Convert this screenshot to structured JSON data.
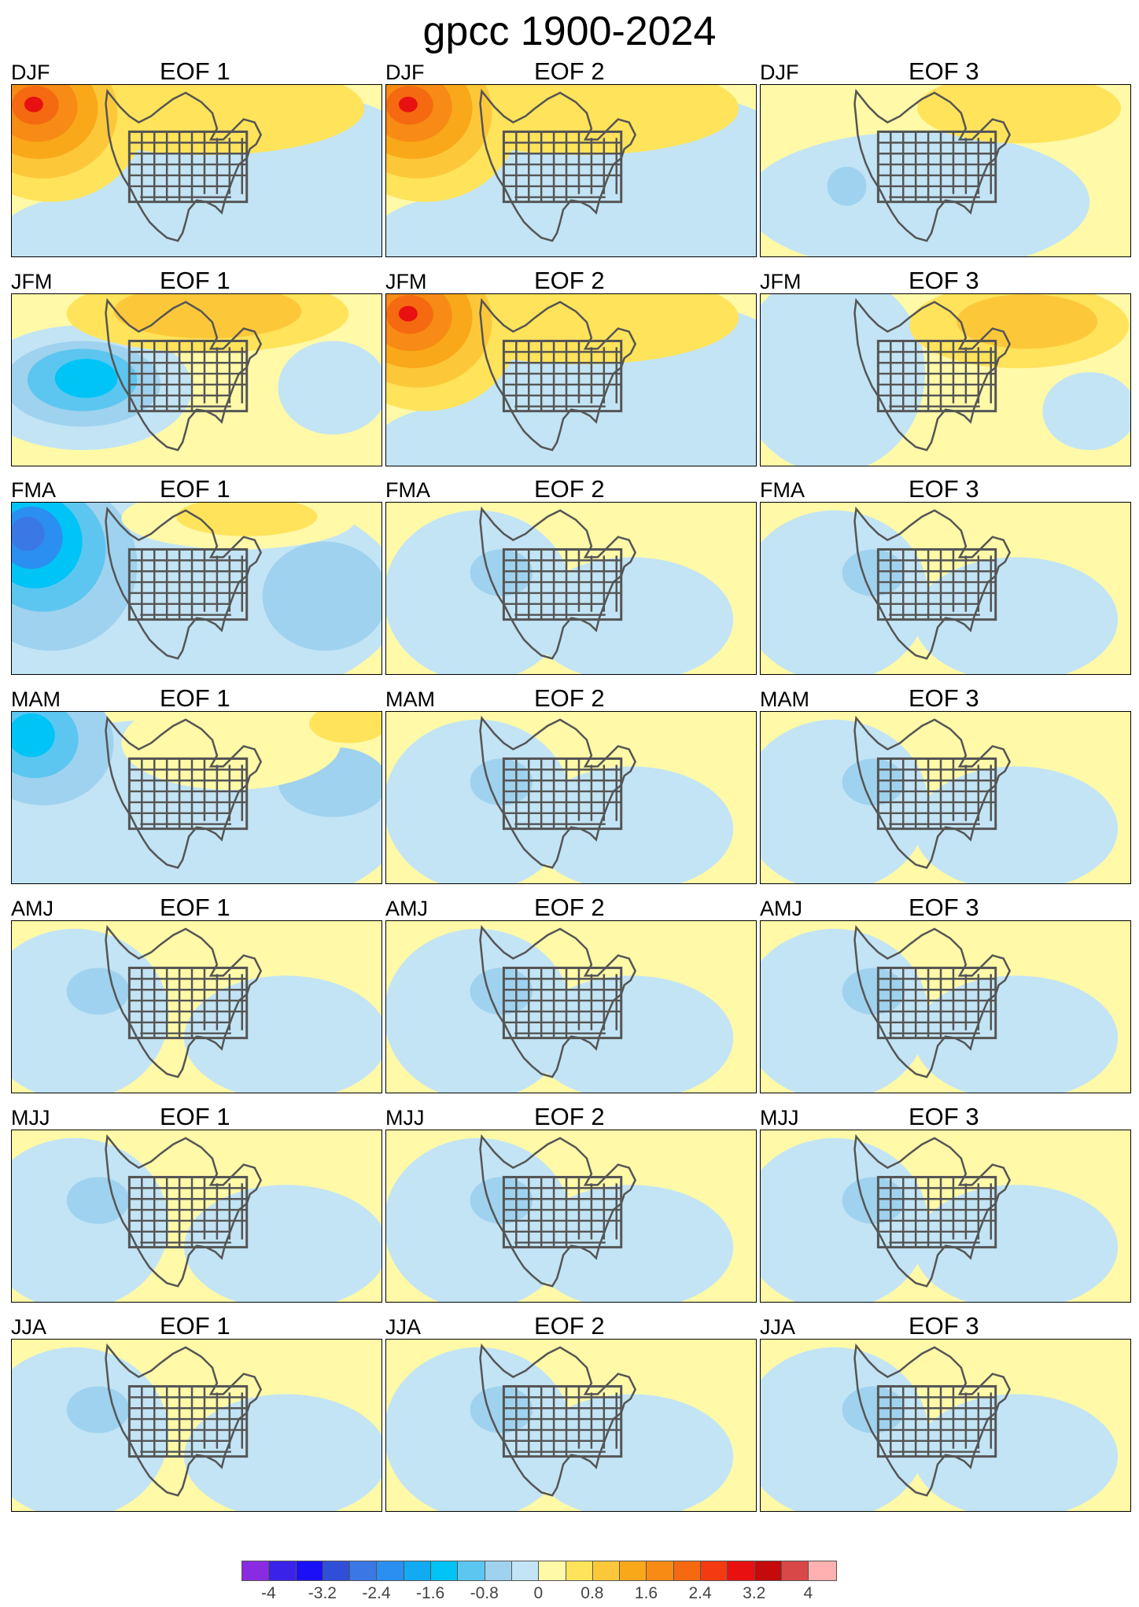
{
  "title": "gpcc 1900-2024",
  "eof_labels": [
    "EOF 1",
    "EOF 2",
    "EOF 3"
  ],
  "seasons": [
    "DJF",
    "JFM",
    "FMA",
    "MAM",
    "AMJ",
    "MJJ",
    "JJA"
  ],
  "panel_patterns": [
    [
      "strong-positive-northwest",
      "strong-positive-northwest",
      "weak-positive-northeast"
    ],
    [
      "negative-west-positive-north",
      "strong-positive-northwest",
      "positive-northeast"
    ],
    [
      "strong-negative-northwest",
      "weak-mixed",
      "weak-mixed"
    ],
    [
      "negative-northwest",
      "weak-mixed",
      "weak-mixed"
    ],
    [
      "weak-mixed",
      "weak-mixed",
      "weak-mixed"
    ],
    [
      "weak-mixed",
      "weak-mixed",
      "weak-mixed"
    ],
    [
      "weak-mixed",
      "weak-mixed",
      "weak-mixed"
    ]
  ],
  "colorbar": {
    "colors": [
      "#8a2be2",
      "#3b22e8",
      "#1a10f5",
      "#2f4fd6",
      "#3a78e6",
      "#2a8ff0",
      "#12aaf0",
      "#00c4f5",
      "#5cc6f0",
      "#9fd2ee",
      "#c2e4f5",
      "#fff9a8",
      "#ffe35a",
      "#fcc83a",
      "#f9a81a",
      "#f78b15",
      "#f56a10",
      "#f43a10",
      "#e81010",
      "#c40a0a",
      "#d84848",
      "#ffb0b0"
    ],
    "tick_labels": [
      "-4",
      "-3.2",
      "-2.4",
      "-1.6",
      "-0.8",
      "0",
      "0.8",
      "1.6",
      "2.4",
      "3.2",
      "4"
    ]
  }
}
